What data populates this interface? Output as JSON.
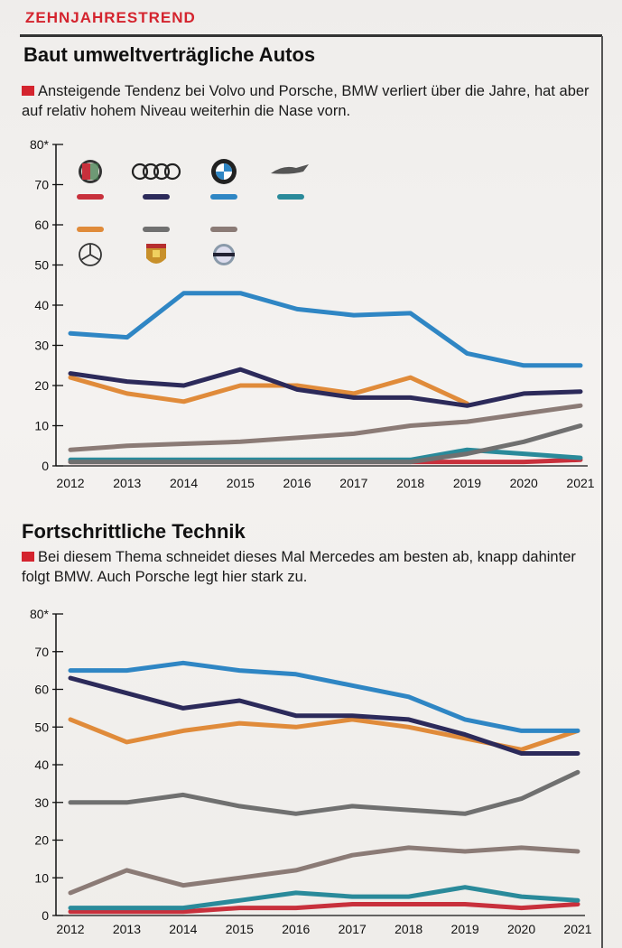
{
  "kicker": "ZEHNJAHRESTREND",
  "section1": {
    "title": "Baut umweltverträgliche Autos",
    "subtitle": "Ansteigende Tendenz bei Volvo und Porsche, BMW verliert über die Jahre, hat aber auf relativ hohem Niveau weiterhin die Nase vorn."
  },
  "section2": {
    "title": "Fortschrittliche Technik",
    "subtitle": "Bei diesem Thema schneidet dieses Mal Mercedes am besten ab, knapp dahinter folgt BMW. Auch Porsche legt hier stark zu."
  },
  "legend": [
    {
      "brand": "Alfa Romeo",
      "icon": "alfa-romeo-logo-icon",
      "color": "#c8303c"
    },
    {
      "brand": "Audi",
      "icon": "audi-rings-logo-icon",
      "color": "#2c2a5a"
    },
    {
      "brand": "BMW",
      "icon": "bmw-roundel-logo-icon",
      "color": "#2f86c4"
    },
    {
      "brand": "Jaguar",
      "icon": "jaguar-leaper-logo-icon",
      "color": "#2a8a9a"
    },
    {
      "brand": "Mercedes",
      "icon": "mercedes-star-logo-icon",
      "color": "#e08b3a"
    },
    {
      "brand": "Porsche",
      "icon": "porsche-crest-logo-icon",
      "color": "#707070"
    },
    {
      "brand": "Volvo",
      "icon": "volvo-logo-icon",
      "color": "#8b7b76"
    }
  ],
  "chart_data": [
    {
      "type": "line",
      "title": "Baut umweltverträgliche Autos",
      "ylim": [
        0,
        80
      ],
      "yticks": [
        0,
        10,
        20,
        30,
        40,
        50,
        60,
        70,
        80
      ],
      "ytop_label": "80*",
      "categories": [
        "2012",
        "2013",
        "2014",
        "2015",
        "2016",
        "2017",
        "2018",
        "2019",
        "2020",
        "2021"
      ],
      "series": [
        {
          "name": "BMW",
          "color": "#2f86c4",
          "values": [
            33,
            32,
            43,
            43,
            39,
            37.5,
            38,
            28,
            25,
            25
          ]
        },
        {
          "name": "Audi",
          "color": "#2c2a5a",
          "values": [
            23,
            21,
            20,
            24,
            19,
            17,
            17,
            15,
            18,
            18.5
          ]
        },
        {
          "name": "Mercedes",
          "color": "#e08b3a",
          "values": [
            22,
            18,
            16,
            20,
            20,
            18,
            22,
            15.5,
            null,
            null
          ]
        },
        {
          "name": "Volvo",
          "color": "#8b7b76",
          "values": [
            4,
            5,
            5.5,
            6,
            7,
            8,
            10,
            11,
            13,
            15
          ]
        },
        {
          "name": "Porsche",
          "color": "#707070",
          "values": [
            1,
            1,
            1,
            1,
            1,
            1,
            1,
            3,
            6,
            10
          ]
        },
        {
          "name": "Jaguar",
          "color": "#2a8a9a",
          "values": [
            1.5,
            1.5,
            1.5,
            1.5,
            1.5,
            1.5,
            1.5,
            4,
            3,
            2
          ]
        },
        {
          "name": "Alfa Romeo",
          "color": "#c8303c",
          "values": [
            1,
            1,
            1,
            1,
            1,
            1,
            1,
            1,
            1,
            1.5
          ]
        }
      ]
    },
    {
      "type": "line",
      "title": "Fortschrittliche Technik",
      "ylim": [
        0,
        80
      ],
      "yticks": [
        0,
        10,
        20,
        30,
        40,
        50,
        60,
        70,
        80
      ],
      "ytop_label": "80*",
      "categories": [
        "2012",
        "2013",
        "2014",
        "2015",
        "2016",
        "2017",
        "2018",
        "2019",
        "2020",
        "2021"
      ],
      "series": [
        {
          "name": "BMW",
          "color": "#2f86c4",
          "values": [
            65,
            65,
            67,
            65,
            64,
            61,
            58,
            52,
            49,
            49
          ]
        },
        {
          "name": "Audi",
          "color": "#2c2a5a",
          "values": [
            63,
            59,
            55,
            57,
            53,
            53,
            52,
            48,
            43,
            43
          ]
        },
        {
          "name": "Mercedes",
          "color": "#e08b3a",
          "values": [
            52,
            46,
            49,
            51,
            50,
            52,
            50,
            47,
            44,
            49
          ]
        },
        {
          "name": "Porsche",
          "color": "#707070",
          "values": [
            30,
            30,
            32,
            29,
            27,
            29,
            28,
            27,
            31,
            38
          ]
        },
        {
          "name": "Volvo",
          "color": "#8b7b76",
          "values": [
            6,
            12,
            8,
            10,
            12,
            16,
            18,
            17,
            18,
            17
          ]
        },
        {
          "name": "Jaguar",
          "color": "#2a8a9a",
          "values": [
            2,
            2,
            2,
            4,
            6,
            5,
            5,
            7.5,
            5,
            4
          ]
        },
        {
          "name": "Alfa Romeo",
          "color": "#c8303c",
          "values": [
            1,
            1,
            1,
            2,
            2,
            3,
            3,
            3,
            2,
            3
          ]
        }
      ]
    }
  ]
}
